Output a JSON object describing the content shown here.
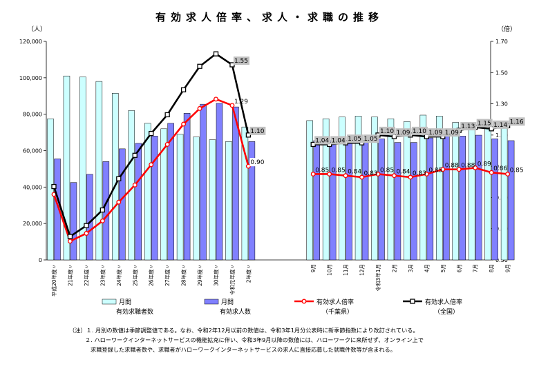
{
  "chart_data": {
    "type": "bar",
    "title": "有効求人倍率、求人・求職の推移",
    "ylabel_left": "（人）",
    "ylabel_right": "（倍）",
    "yleft_lim": [
      0,
      120000
    ],
    "yleft_ticks": [
      "0",
      "20,000",
      "40,000",
      "60,000",
      "80,000",
      "100,000",
      "120,000"
    ],
    "yright_lim": [
      0.3,
      1.7
    ],
    "yright_ticks": [
      "0.30",
      "0.50",
      "0.70",
      "0.90",
      "1.10",
      "1.30",
      "1.50",
      "1.70"
    ],
    "categories": [
      "平成20年度",
      "21年度",
      "22年度",
      "23年度",
      "24年度",
      "25年度",
      "26年度",
      "27年度",
      "28年度",
      "29年度",
      "30年度",
      "令和元年度",
      "2年度",
      "9月",
      "10月",
      "11月",
      "12月",
      "令和3年1月",
      "2月",
      "3月",
      "4月",
      "5月",
      "6月",
      "7月",
      "8月",
      "9月"
    ],
    "category_marks": [
      "〃",
      "〃",
      "〃",
      "〃",
      "〃",
      "〃",
      "〃",
      "〃",
      "〃",
      "〃",
      "〃",
      "〃",
      "〃",
      "",
      "",
      "",
      "",
      "",
      "",
      "",
      "",
      "",
      "",
      "",
      "",
      ""
    ],
    "series": [
      {
        "name": "月間有効求職者数",
        "legend_line1": "月間",
        "legend_line2": "有効求職者数",
        "axis": "left",
        "kind": "bar",
        "color": "#ccffff",
        "values": [
          77500,
          101000,
          100500,
          98000,
          91500,
          82000,
          75000,
          72000,
          69000,
          67500,
          66000,
          65000,
          73000,
          76500,
          77500,
          78500,
          79000,
          78500,
          77500,
          76000,
          79500,
          79000,
          75500,
          74000,
          72500,
          76000
        ]
      },
      {
        "name": "月間有効求人数",
        "legend_line1": "月間",
        "legend_line2": "有効求人数",
        "axis": "left",
        "kind": "bar",
        "color": "#8080ff",
        "values": [
          55500,
          42500,
          47000,
          54000,
          61000,
          64000,
          68000,
          75000,
          80500,
          85500,
          86000,
          84000,
          65000,
          65500,
          65500,
          65500,
          65500,
          66500,
          64500,
          64500,
          67000,
          68500,
          68000,
          68500,
          66500,
          65500
        ]
      },
      {
        "name": "有効求人倍率（千葉県）",
        "legend_line1": "有効求人倍率",
        "legend_line2": "（千葉県）",
        "axis": "right",
        "kind": "line",
        "color": "#ff0000",
        "values": [
          0.72,
          0.42,
          0.47,
          0.55,
          0.67,
          0.78,
          0.91,
          1.04,
          1.17,
          1.27,
          1.33,
          1.29,
          0.9,
          0.85,
          0.85,
          0.84,
          0.83,
          0.85,
          0.84,
          0.83,
          0.85,
          0.88,
          0.88,
          0.89,
          0.86,
          0.85
        ],
        "labels": [
          "",
          "",
          "",
          "",
          "",
          "",
          "",
          "",
          "",
          "",
          "",
          "1.29",
          "0.90",
          "0.85",
          "0.85",
          "0.84",
          "0.83",
          "0.85",
          "0.84",
          "0.83",
          "0.85",
          "0.88",
          "0.88",
          "0.89",
          "0.86",
          "0.85"
        ]
      },
      {
        "name": "有効求人倍率（全国）",
        "legend_line1": "有効求人倍率",
        "legend_line2": "（全国）",
        "axis": "right",
        "kind": "line",
        "color": "#000000",
        "values": [
          0.77,
          0.45,
          0.52,
          0.62,
          0.82,
          0.97,
          1.11,
          1.23,
          1.39,
          1.54,
          1.62,
          1.55,
          1.1,
          1.04,
          1.04,
          1.05,
          1.05,
          1.1,
          1.09,
          1.1,
          1.09,
          1.09,
          1.13,
          1.15,
          1.14,
          1.16
        ],
        "labels": [
          "",
          "",
          "",
          "",
          "",
          "",
          "",
          "",
          "",
          "",
          "",
          "1.55",
          "1.10",
          "1.04",
          "1.04",
          "1.05",
          "1.05",
          "1.10",
          "1.09",
          "1.10",
          "1.09",
          "1.09",
          "1.13",
          "1.15",
          "1.14",
          "1.16"
        ]
      }
    ],
    "legend_position": "bottom",
    "grid": false
  },
  "notes": [
    "（注）１. 月別の数値は季節調整値である。なお、令和2年12月以前の数値は、令和3年1月分公表時に新季節指数により改訂されている。",
    "２. ハローワークインターネットサービスの機能拡充に伴い、令和3年9月以降の数値には、ハローワークに来所せず、オンライン上で",
    "求職登録した求職者数や、求職者がハローワークインターネットサービスの求人に直接応募した就職件数等が含まれる。"
  ]
}
